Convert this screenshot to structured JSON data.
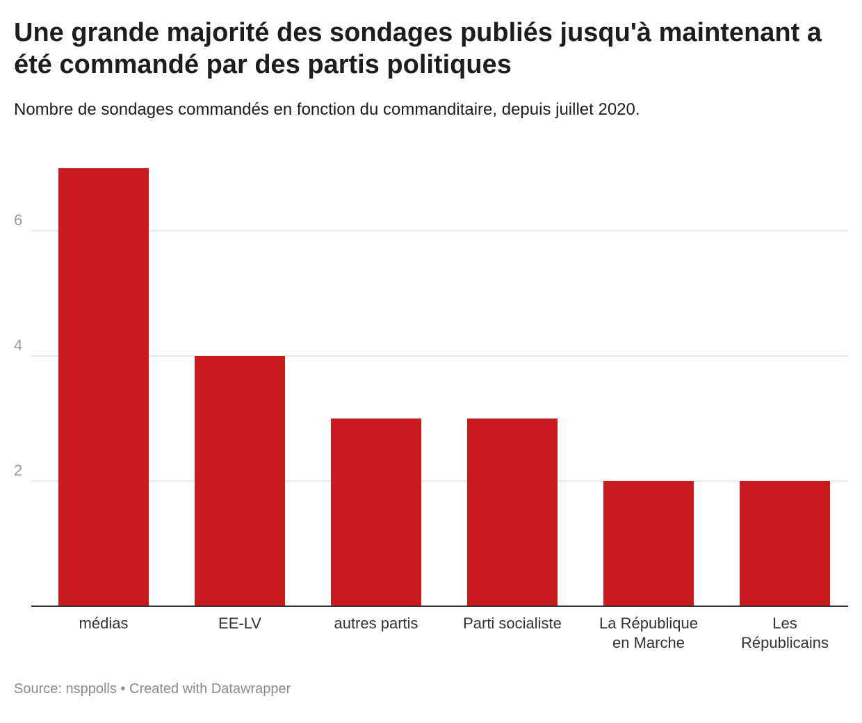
{
  "header": {
    "title": "Une grande majorité des sondages publiés jusqu'à maintenant a été commandé par des partis politiques",
    "subtitle": "Nombre de sondages commandés en fonction du commanditaire, depuis juillet 2020."
  },
  "footer": {
    "source": "Source: nsppolls",
    "separator": " • ",
    "credit": "Created with Datawrapper"
  },
  "chart_data": {
    "type": "bar",
    "title": "Une grande majorité des sondages publiés jusqu'à maintenant a été commandé par des partis politiques",
    "subtitle": "Nombre de sondages commandés en fonction du commanditaire, depuis juillet 2020.",
    "categories": [
      [
        "médias"
      ],
      [
        "EE-LV"
      ],
      [
        "autres partis"
      ],
      [
        "Parti socialiste"
      ],
      [
        "La République",
        "en Marche"
      ],
      [
        "Les",
        "Républicains"
      ]
    ],
    "values": [
      7,
      4,
      3,
      3,
      2,
      2
    ],
    "yticks": [
      2,
      4,
      6
    ],
    "ylim": [
      0,
      7
    ],
    "xlabel": "",
    "ylabel": "",
    "grid": true,
    "legend": "none",
    "colors": {
      "bar": "#c91b1f",
      "grid": "#e2e2e2",
      "axis": "#333333",
      "tick_label": "#9a9a9a",
      "category_label": "#333333"
    }
  }
}
